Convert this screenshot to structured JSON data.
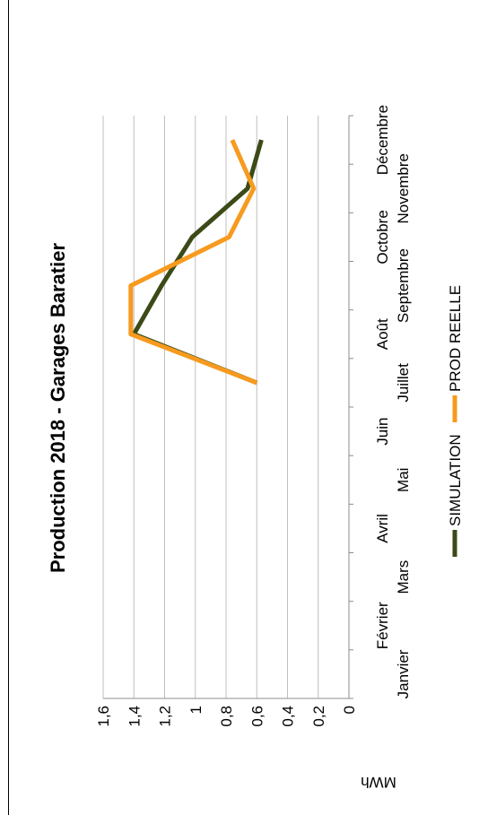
{
  "chart_data": {
    "type": "line",
    "title": "Production 2018 - Garages Baratier",
    "ylabel": "MWh",
    "xlabel": "",
    "categories": [
      "Janvier",
      "Février",
      "Mars",
      "Avril",
      "Mai",
      "Juin",
      "Juillet",
      "Août",
      "Septembre",
      "Octobre",
      "Novembre",
      "Décembre"
    ],
    "ylim": [
      0,
      1.6
    ],
    "yticks": [
      "0",
      "0,2",
      "0,4",
      "0,6",
      "0,8",
      "1",
      "1,2",
      "1,4",
      "1,6"
    ],
    "grid": true,
    "legend_position": "bottom",
    "series": [
      {
        "name": "SIMULATION",
        "color": "#3b4a17",
        "values": [
          null,
          null,
          null,
          null,
          null,
          null,
          0.6,
          1.4,
          1.22,
          1.02,
          0.66,
          0.57
        ]
      },
      {
        "name": "PROD REELLE",
        "color": "#f79a1e",
        "values": [
          null,
          null,
          null,
          null,
          null,
          null,
          0.6,
          1.42,
          1.42,
          0.78,
          0.62,
          0.76
        ]
      }
    ]
  }
}
